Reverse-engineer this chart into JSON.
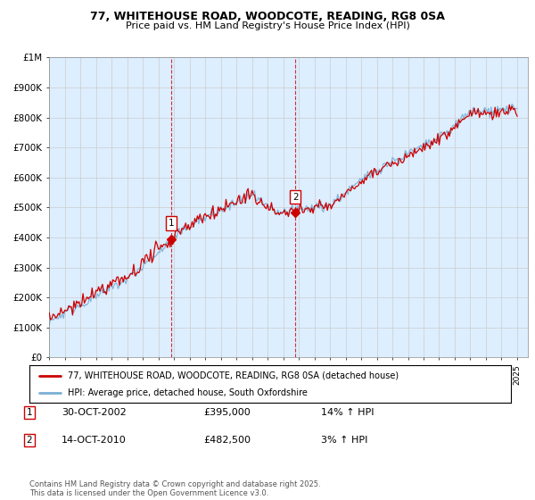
{
  "title_line1": "77, WHITEHOUSE ROAD, WOODCOTE, READING, RG8 0SA",
  "title_line2": "Price paid vs. HM Land Registry's House Price Index (HPI)",
  "ylim": [
    0,
    1000000
  ],
  "yticks": [
    0,
    100000,
    200000,
    300000,
    400000,
    500000,
    600000,
    700000,
    800000,
    900000,
    1000000
  ],
  "ytick_labels": [
    "£0",
    "£100K",
    "£200K",
    "£300K",
    "£400K",
    "£500K",
    "£600K",
    "£700K",
    "£800K",
    "£900K",
    "£1M"
  ],
  "xlim_start": 1995.0,
  "xlim_end": 2025.7,
  "line1_color": "#cc0000",
  "line2_color": "#7ab0d4",
  "line1_label": "77, WHITEHOUSE ROAD, WOODCOTE, READING, RG8 0SA (detached house)",
  "line2_label": "HPI: Average price, detached house, South Oxfordshire",
  "sale1_x": 2002.83,
  "sale1_y": 395000,
  "sale2_x": 2010.79,
  "sale2_y": 482500,
  "annotation1_date": "30-OCT-2002",
  "annotation1_price": "£395,000",
  "annotation1_hpi": "14% ↑ HPI",
  "annotation2_date": "14-OCT-2010",
  "annotation2_price": "£482,500",
  "annotation2_hpi": "3% ↑ HPI",
  "vline1_x": 2002.83,
  "vline2_x": 2010.79,
  "copyright_text": "Contains HM Land Registry data © Crown copyright and database right 2025.\nThis data is licensed under the Open Government Licence v3.0.",
  "background_color": "#ddeeff",
  "plot_bg_color": "#ffffff",
  "grid_color": "#cccccc",
  "fill_color": "#ddeeff"
}
